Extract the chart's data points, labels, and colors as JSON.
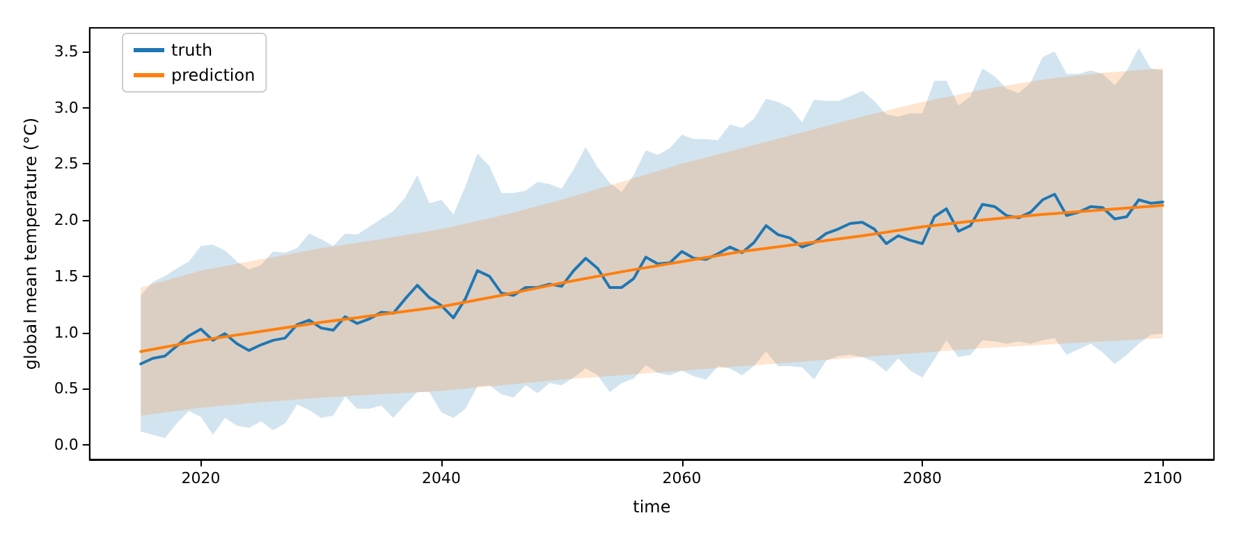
{
  "chart_data": {
    "type": "line",
    "xlabel": "time",
    "ylabel": "global mean temperature (°C)",
    "xlim": [
      2010.75,
      2104.25
    ],
    "xticks": [
      2020,
      2040,
      2060,
      2080,
      2100
    ],
    "ylim": [
      -0.13,
      3.71
    ],
    "yticks": [
      {
        "value": 0,
        "label": "0.0"
      },
      0.5,
      {
        "value": 1,
        "label": "1.0"
      },
      1.5,
      {
        "value": 2,
        "label": "2.0"
      },
      2.5,
      {
        "value": 3,
        "label": "3.0"
      },
      3.5
    ],
    "grid": false,
    "legend": "top left",
    "marker": "none",
    "line_style": "solid",
    "series": [
      {
        "name": "truth",
        "color": "#1f77b4",
        "x": [
          2015,
          2016,
          2017,
          2018,
          2019,
          2020,
          2021,
          2022,
          2023,
          2024,
          2025,
          2026,
          2027,
          2028,
          2029,
          2030,
          2031,
          2032,
          2033,
          2034,
          2035,
          2036,
          2037,
          2038,
          2039,
          2040,
          2041,
          2042,
          2043,
          2044,
          2045,
          2046,
          2047,
          2048,
          2049,
          2050,
          2051,
          2052,
          2053,
          2054,
          2055,
          2056,
          2057,
          2058,
          2059,
          2060,
          2061,
          2062,
          2063,
          2064,
          2065,
          2066,
          2067,
          2068,
          2069,
          2070,
          2071,
          2072,
          2073,
          2074,
          2075,
          2076,
          2077,
          2078,
          2079,
          2080,
          2081,
          2082,
          2083,
          2084,
          2085,
          2086,
          2087,
          2088,
          2089,
          2090,
          2091,
          2092,
          2093,
          2094,
          2095,
          2096,
          2097,
          2098,
          2099,
          2100
        ],
        "values": [
          0.72,
          0.77,
          0.79,
          0.88,
          0.97,
          1.03,
          0.93,
          0.99,
          0.9,
          0.84,
          0.89,
          0.93,
          0.95,
          1.07,
          1.11,
          1.04,
          1.02,
          1.14,
          1.08,
          1.12,
          1.18,
          1.17,
          1.3,
          1.42,
          1.31,
          1.24,
          1.13,
          1.3,
          1.55,
          1.5,
          1.35,
          1.33,
          1.4,
          1.4,
          1.43,
          1.41,
          1.55,
          1.66,
          1.57,
          1.4,
          1.4,
          1.48,
          1.67,
          1.61,
          1.62,
          1.72,
          1.66,
          1.65,
          1.7,
          1.76,
          1.71,
          1.8,
          1.95,
          1.87,
          1.84,
          1.76,
          1.8,
          1.88,
          1.92,
          1.97,
          1.98,
          1.92,
          1.79,
          1.86,
          1.82,
          1.79,
          2.03,
          2.1,
          1.9,
          1.95,
          2.14,
          2.12,
          2.04,
          2.02,
          2.07,
          2.18,
          2.23,
          2.04,
          2.07,
          2.12,
          2.11,
          2.01,
          2.03,
          2.18,
          2.15,
          2.16
        ],
        "upper": [
          1.33,
          1.45,
          1.5,
          1.57,
          1.63,
          1.77,
          1.78,
          1.73,
          1.63,
          1.56,
          1.6,
          1.72,
          1.71,
          1.75,
          1.88,
          1.83,
          1.77,
          1.88,
          1.87,
          1.94,
          2.01,
          2.08,
          2.2,
          2.4,
          2.15,
          2.18,
          2.05,
          2.3,
          2.59,
          2.48,
          2.24,
          2.24,
          2.26,
          2.34,
          2.32,
          2.28,
          2.45,
          2.65,
          2.47,
          2.33,
          2.25,
          2.4,
          2.62,
          2.58,
          2.64,
          2.76,
          2.72,
          2.72,
          2.71,
          2.85,
          2.82,
          2.9,
          3.08,
          3.05,
          3,
          2.87,
          3.07,
          3.06,
          3.06,
          3.1,
          3.15,
          3.06,
          2.94,
          2.92,
          2.95,
          2.95,
          3.24,
          3.24,
          3.02,
          3.1,
          3.35,
          3.28,
          3.17,
          3.13,
          3.22,
          3.45,
          3.5,
          3.3,
          3.3,
          3.33,
          3.3,
          3.2,
          3.33,
          3.53,
          3.35,
          3.33
        ],
        "lower": [
          0.12,
          0.09,
          0.06,
          0.19,
          0.3,
          0.25,
          0.09,
          0.24,
          0.17,
          0.15,
          0.21,
          0.13,
          0.19,
          0.36,
          0.31,
          0.24,
          0.26,
          0.43,
          0.32,
          0.32,
          0.35,
          0.24,
          0.36,
          0.47,
          0.47,
          0.29,
          0.24,
          0.32,
          0.52,
          0.53,
          0.45,
          0.42,
          0.53,
          0.46,
          0.55,
          0.53,
          0.6,
          0.68,
          0.62,
          0.47,
          0.55,
          0.59,
          0.71,
          0.64,
          0.62,
          0.66,
          0.61,
          0.58,
          0.7,
          0.68,
          0.62,
          0.7,
          0.83,
          0.7,
          0.7,
          0.69,
          0.58,
          0.75,
          0.79,
          0.8,
          0.78,
          0.74,
          0.65,
          0.77,
          0.66,
          0.6,
          0.76,
          0.93,
          0.78,
          0.8,
          0.93,
          0.92,
          0.9,
          0.92,
          0.9,
          0.93,
          0.95,
          0.8,
          0.85,
          0.9,
          0.82,
          0.72,
          0.8,
          0.9,
          0.98,
          0.99
        ]
      },
      {
        "name": "prediction",
        "color": "#ff7f0e",
        "x": [
          2015,
          2020,
          2025,
          2030,
          2035,
          2040,
          2045,
          2050,
          2055,
          2060,
          2065,
          2070,
          2075,
          2080,
          2085,
          2090,
          2095,
          2100
        ],
        "values": [
          0.83,
          0.93,
          1.01,
          1.09,
          1.16,
          1.23,
          1.33,
          1.44,
          1.54,
          1.63,
          1.72,
          1.79,
          1.86,
          1.94,
          2,
          2.05,
          2.09,
          2.13
        ],
        "upper": [
          1.4,
          1.55,
          1.65,
          1.75,
          1.83,
          1.92,
          2.04,
          2.18,
          2.34,
          2.5,
          2.64,
          2.78,
          2.92,
          3.05,
          3.16,
          3.25,
          3.31,
          3.35
        ],
        "lower": [
          0.26,
          0.33,
          0.38,
          0.42,
          0.45,
          0.48,
          0.53,
          0.58,
          0.62,
          0.66,
          0.7,
          0.74,
          0.78,
          0.82,
          0.86,
          0.89,
          0.92,
          0.95
        ]
      }
    ]
  }
}
